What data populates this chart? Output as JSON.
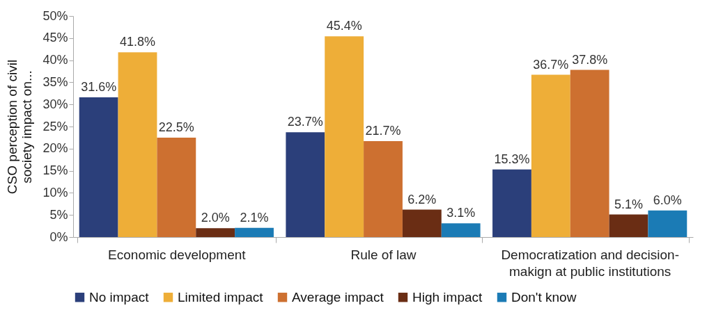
{
  "chart_data": {
    "type": "bar",
    "ylabel": "CSO perception of civil society impact on...",
    "categories": [
      "Economic development",
      "Rule of law",
      "Democratization and decision-makign at public institutions"
    ],
    "series": [
      {
        "name": "No impact",
        "color": "#2b3f7a",
        "values": [
          31.6,
          23.7,
          15.3
        ],
        "value_labels": [
          "31.6%",
          "23.7%",
          "15.3%"
        ]
      },
      {
        "name": "Limited impact",
        "color": "#eeae38",
        "values": [
          41.8,
          45.4,
          36.7
        ],
        "value_labels": [
          "41.8%",
          "45.4%",
          "36.7%"
        ]
      },
      {
        "name": "Average impact",
        "color": "#cd7030",
        "values": [
          22.5,
          21.7,
          37.8
        ],
        "value_labels": [
          "22.5%",
          "21.7%",
          "37.8%"
        ]
      },
      {
        "name": "High impact",
        "color": "#6a2d14",
        "values": [
          2.0,
          6.2,
          5.1
        ],
        "value_labels": [
          "2.0%",
          "6.2%",
          "5.1%"
        ]
      },
      {
        "name": "Don't know",
        "color": "#1b7bb5",
        "values": [
          2.1,
          3.1,
          6.0
        ],
        "value_labels": [
          "2.1%",
          "3.1%",
          "6.0%"
        ]
      }
    ],
    "ylim": [
      0,
      50
    ],
    "yticks": [
      {
        "value": 0,
        "label": "0%"
      },
      {
        "value": 5,
        "label": "5%"
      },
      {
        "value": 10,
        "label": "10%"
      },
      {
        "value": 15,
        "label": "15%"
      },
      {
        "value": 20,
        "label": "20%"
      },
      {
        "value": 25,
        "label": "25%"
      },
      {
        "value": 30,
        "label": "30%"
      },
      {
        "value": 35,
        "label": "35%"
      },
      {
        "value": 40,
        "label": "40%"
      },
      {
        "value": 45,
        "label": "45%"
      },
      {
        "value": 50,
        "label": "50%"
      }
    ],
    "grid": false,
    "legend": "bottom"
  }
}
